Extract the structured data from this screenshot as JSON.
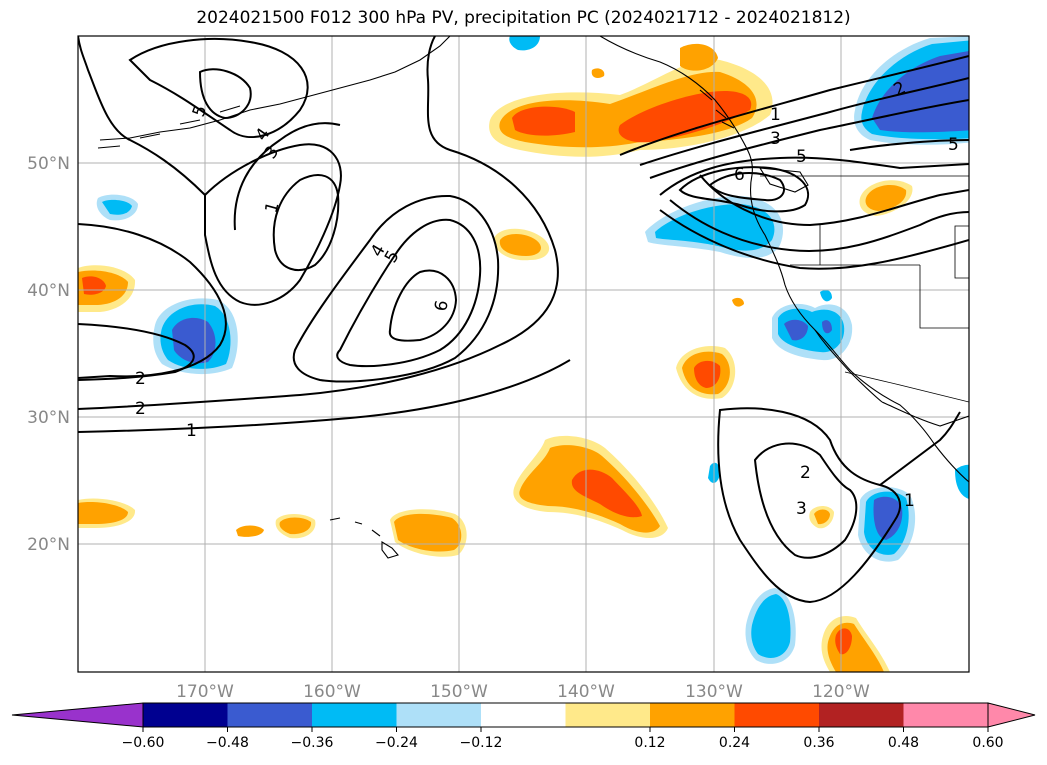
{
  "title": "2024021500 F012 300 hPa PV, precipitation PC (2024021712 - 2024021812)",
  "map": {
    "lon_range": [
      -180,
      -110
    ],
    "lat_range": [
      10,
      60
    ],
    "gridlines": true,
    "lon_labels": [
      "170°W",
      "160°W",
      "150°W",
      "140°W",
      "130°W",
      "120°W"
    ],
    "lat_labels": [
      "50°N",
      "40°N",
      "30°N",
      "20°N"
    ],
    "contour_labels": [
      "5",
      "4",
      "3",
      "1",
      "4",
      "5",
      "6",
      "2",
      "2",
      "1",
      "1",
      "3",
      "5",
      "6",
      "2",
      "5",
      "2",
      "3",
      "1"
    ],
    "colors": {
      "blue_dark": "#3a5bd0",
      "blue_mid": "#00bbf5",
      "blue_light": "#aee0f8",
      "yellow": "#ffe98a",
      "orange": "#ffa200",
      "red_orange": "#ff4a00",
      "contour": "#000000",
      "grid": "#b0b0b0",
      "axis_label": "#888888"
    }
  },
  "colorbar": {
    "ticks": [
      "−0.60",
      "−0.48",
      "−0.36",
      "−0.24",
      "−0.12",
      "0.12",
      "0.24",
      "0.36",
      "0.48",
      "0.60"
    ],
    "colors": [
      "#9932cc",
      "#000090",
      "#3a5bd0",
      "#00bbf5",
      "#aee0f8",
      "#ffffff",
      "#ffe98a",
      "#ffa200",
      "#ff4a00",
      "#b22222",
      "#ff88aa",
      "#ff88aa"
    ]
  }
}
